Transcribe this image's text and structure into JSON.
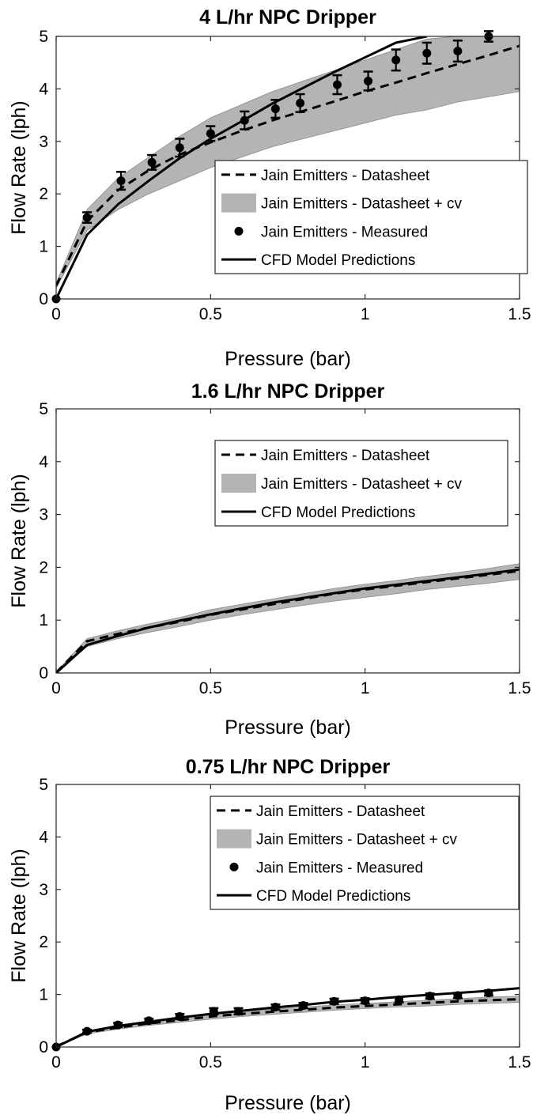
{
  "chart_data": [
    {
      "type": "line",
      "title": "4 L/hr NPC Dripper",
      "xlabel": "Pressure (bar)",
      "ylabel": "Flow Rate (lph)",
      "xlim": [
        0,
        1.5
      ],
      "ylim": [
        0,
        5
      ],
      "xticks": [
        0,
        0.5,
        1,
        1.5
      ],
      "xtick_labels": [
        "0",
        "0.5",
        "1",
        "1.5"
      ],
      "yticks": [
        0,
        1,
        2,
        3,
        4,
        5
      ],
      "ytick_labels": [
        "0",
        "1",
        "2",
        "3",
        "4",
        "5"
      ],
      "grid": false,
      "legend_placement": "center-right",
      "legend": [
        {
          "label": "Jain Emitters - Datasheet",
          "style": "dashed"
        },
        {
          "label": "Jain Emitters - Datasheet + cv",
          "style": "band"
        },
        {
          "label": "Jain Emitters - Measured",
          "style": "marker"
        },
        {
          "label": "CFD Model Predictions",
          "style": "solid"
        }
      ],
      "series": [
        {
          "role": "band",
          "x": [
            0,
            0.1,
            0.2,
            0.3,
            0.4,
            0.5,
            0.6,
            0.7,
            0.8,
            0.9,
            1.0,
            1.1,
            1.2,
            1.3,
            1.4,
            1.5
          ],
          "upper": [
            0.3,
            1.7,
            2.3,
            2.7,
            3.1,
            3.45,
            3.7,
            3.95,
            4.15,
            4.35,
            4.55,
            4.75,
            4.95,
            5.0,
            5.0,
            5.0
          ],
          "lower": [
            0.2,
            1.3,
            1.7,
            2.0,
            2.25,
            2.5,
            2.7,
            2.9,
            3.05,
            3.2,
            3.35,
            3.5,
            3.6,
            3.75,
            3.85,
            3.95
          ]
        },
        {
          "role": "dashed",
          "x": [
            0,
            0.1,
            0.2,
            0.3,
            0.4,
            0.5,
            0.6,
            0.7,
            0.8,
            0.9,
            1.0,
            1.1,
            1.2,
            1.3,
            1.4,
            1.5
          ],
          "y": [
            0.25,
            1.48,
            2.07,
            2.45,
            2.75,
            2.98,
            3.2,
            3.4,
            3.58,
            3.76,
            3.95,
            4.12,
            4.3,
            4.47,
            4.64,
            4.82
          ]
        },
        {
          "role": "solid",
          "x": [
            0,
            0.1,
            0.2,
            0.3,
            0.4,
            0.5,
            0.6,
            0.7,
            0.8,
            0.9,
            1.0,
            1.1,
            1.2
          ],
          "y": [
            0,
            1.22,
            1.8,
            2.25,
            2.68,
            3.05,
            3.38,
            3.72,
            4.02,
            4.32,
            4.6,
            4.88,
            5.0
          ]
        },
        {
          "role": "marker",
          "x": [
            0,
            0.1,
            0.21,
            0.31,
            0.4,
            0.5,
            0.61,
            0.71,
            0.79,
            0.91,
            1.01,
            1.1,
            1.2,
            1.3,
            1.4
          ],
          "y": [
            0,
            1.55,
            2.25,
            2.6,
            2.88,
            3.15,
            3.4,
            3.62,
            3.73,
            4.08,
            4.15,
            4.55,
            4.68,
            4.72,
            5.0
          ],
          "err": [
            0,
            0.1,
            0.17,
            0.14,
            0.17,
            0.14,
            0.17,
            0.17,
            0.17,
            0.18,
            0.18,
            0.2,
            0.2,
            0.2,
            0.1
          ]
        }
      ]
    },
    {
      "type": "line",
      "title": "1.6 L/hr NPC Dripper",
      "xlabel": "Pressure (bar)",
      "ylabel": "Flow Rate (lph)",
      "xlim": [
        0,
        1.5
      ],
      "ylim": [
        0,
        5
      ],
      "xticks": [
        0,
        0.5,
        1,
        1.5
      ],
      "xtick_labels": [
        "0",
        "0.5",
        "1",
        "1.5"
      ],
      "yticks": [
        0,
        1,
        2,
        3,
        4,
        5
      ],
      "ytick_labels": [
        "0",
        "1",
        "2",
        "3",
        "4",
        "5"
      ],
      "grid": false,
      "legend_placement": "top-right",
      "legend": [
        {
          "label": "Jain Emitters - Datasheet",
          "style": "dashed"
        },
        {
          "label": "Jain Emitters - Datasheet + cv",
          "style": "band"
        },
        {
          "label": "CFD Model Predictions",
          "style": "solid"
        }
      ],
      "series": [
        {
          "role": "band",
          "x": [
            0,
            0.1,
            0.2,
            0.3,
            0.4,
            0.5,
            0.6,
            0.7,
            0.8,
            0.9,
            1.0,
            1.1,
            1.2,
            1.3,
            1.4,
            1.5
          ],
          "upper": [
            0.02,
            0.65,
            0.8,
            0.93,
            1.05,
            1.2,
            1.3,
            1.4,
            1.5,
            1.6,
            1.68,
            1.75,
            1.83,
            1.9,
            1.98,
            2.07
          ],
          "lower": [
            0,
            0.5,
            0.65,
            0.77,
            0.88,
            1.0,
            1.1,
            1.19,
            1.28,
            1.36,
            1.43,
            1.5,
            1.58,
            1.64,
            1.7,
            1.77
          ]
        },
        {
          "role": "dashed",
          "x": [
            0,
            0.1,
            0.2,
            0.3,
            0.4,
            0.5,
            0.6,
            0.7,
            0.8,
            0.9,
            1.0,
            1.1,
            1.2,
            1.3,
            1.4,
            1.5
          ],
          "y": [
            0.01,
            0.6,
            0.74,
            0.86,
            0.97,
            1.1,
            1.2,
            1.3,
            1.4,
            1.5,
            1.58,
            1.65,
            1.72,
            1.79,
            1.86,
            1.93
          ]
        },
        {
          "role": "solid",
          "x": [
            0,
            0.1,
            0.2,
            0.3,
            0.4,
            0.5,
            0.6,
            0.7,
            0.8,
            0.9,
            1.0,
            1.1,
            1.2,
            1.3,
            1.4,
            1.5
          ],
          "y": [
            0,
            0.53,
            0.7,
            0.86,
            0.99,
            1.11,
            1.22,
            1.33,
            1.42,
            1.51,
            1.6,
            1.67,
            1.74,
            1.81,
            1.88,
            1.96
          ]
        }
      ]
    },
    {
      "type": "line",
      "title": "0.75 L/hr NPC Dripper",
      "xlabel": "Pressure (bar)",
      "ylabel": "Flow Rate (lph)",
      "xlim": [
        0,
        1.5
      ],
      "ylim": [
        0,
        5
      ],
      "xticks": [
        0,
        0.5,
        1,
        1.5
      ],
      "xtick_labels": [
        "0",
        "0.5",
        "1",
        "1.5"
      ],
      "yticks": [
        0,
        1,
        2,
        3,
        4,
        5
      ],
      "ytick_labels": [
        "0",
        "1",
        "2",
        "3",
        "4",
        "5"
      ],
      "grid": false,
      "legend_placement": "top-right",
      "legend": [
        {
          "label": "Jain Emitters - Datasheet",
          "style": "dashed"
        },
        {
          "label": "Jain Emitters - Datasheet + cv",
          "style": "band"
        },
        {
          "label": "Jain Emitters - Measured",
          "style": "marker"
        },
        {
          "label": "CFD Model Predictions",
          "style": "solid"
        }
      ],
      "series": [
        {
          "role": "band",
          "x": [
            0,
            0.1,
            0.2,
            0.3,
            0.4,
            0.5,
            0.6,
            0.7,
            0.8,
            0.9,
            1.0,
            1.1,
            1.2,
            1.3,
            1.4,
            1.5
          ],
          "upper": [
            0.02,
            0.3,
            0.4,
            0.48,
            0.55,
            0.62,
            0.67,
            0.72,
            0.76,
            0.8,
            0.83,
            0.86,
            0.89,
            0.92,
            0.95,
            0.97
          ],
          "lower": [
            0,
            0.25,
            0.34,
            0.41,
            0.47,
            0.53,
            0.58,
            0.62,
            0.66,
            0.7,
            0.73,
            0.76,
            0.78,
            0.81,
            0.83,
            0.85
          ]
        },
        {
          "role": "dashed",
          "x": [
            0,
            0.1,
            0.2,
            0.3,
            0.4,
            0.5,
            0.6,
            0.7,
            0.8,
            0.9,
            1.0,
            1.1,
            1.2,
            1.3,
            1.4,
            1.5
          ],
          "y": [
            0.01,
            0.28,
            0.37,
            0.45,
            0.51,
            0.58,
            0.63,
            0.67,
            0.71,
            0.75,
            0.78,
            0.81,
            0.84,
            0.87,
            0.89,
            0.91
          ]
        },
        {
          "role": "solid",
          "x": [
            0,
            0.1,
            0.2,
            0.3,
            0.4,
            0.5,
            0.6,
            0.7,
            0.8,
            0.9,
            1.0,
            1.1,
            1.2,
            1.3,
            1.4,
            1.5
          ],
          "y": [
            0,
            0.29,
            0.4,
            0.48,
            0.56,
            0.63,
            0.69,
            0.75,
            0.8,
            0.86,
            0.9,
            0.95,
            0.99,
            1.03,
            1.07,
            1.12
          ]
        },
        {
          "role": "marker",
          "x": [
            0,
            0.1,
            0.2,
            0.3,
            0.4,
            0.51,
            0.59,
            0.71,
            0.8,
            0.9,
            1.0,
            1.11,
            1.21,
            1.3,
            1.4
          ],
          "y": [
            0,
            0.3,
            0.42,
            0.5,
            0.58,
            0.68,
            0.68,
            0.76,
            0.79,
            0.87,
            0.88,
            0.9,
            0.97,
            0.98,
            1.03
          ],
          "err": [
            0,
            0.03,
            0.04,
            0.04,
            0.05,
            0.06,
            0.06,
            0.05,
            0.05,
            0.05,
            0.05,
            0.05,
            0.05,
            0.05,
            0.05
          ]
        }
      ]
    }
  ]
}
